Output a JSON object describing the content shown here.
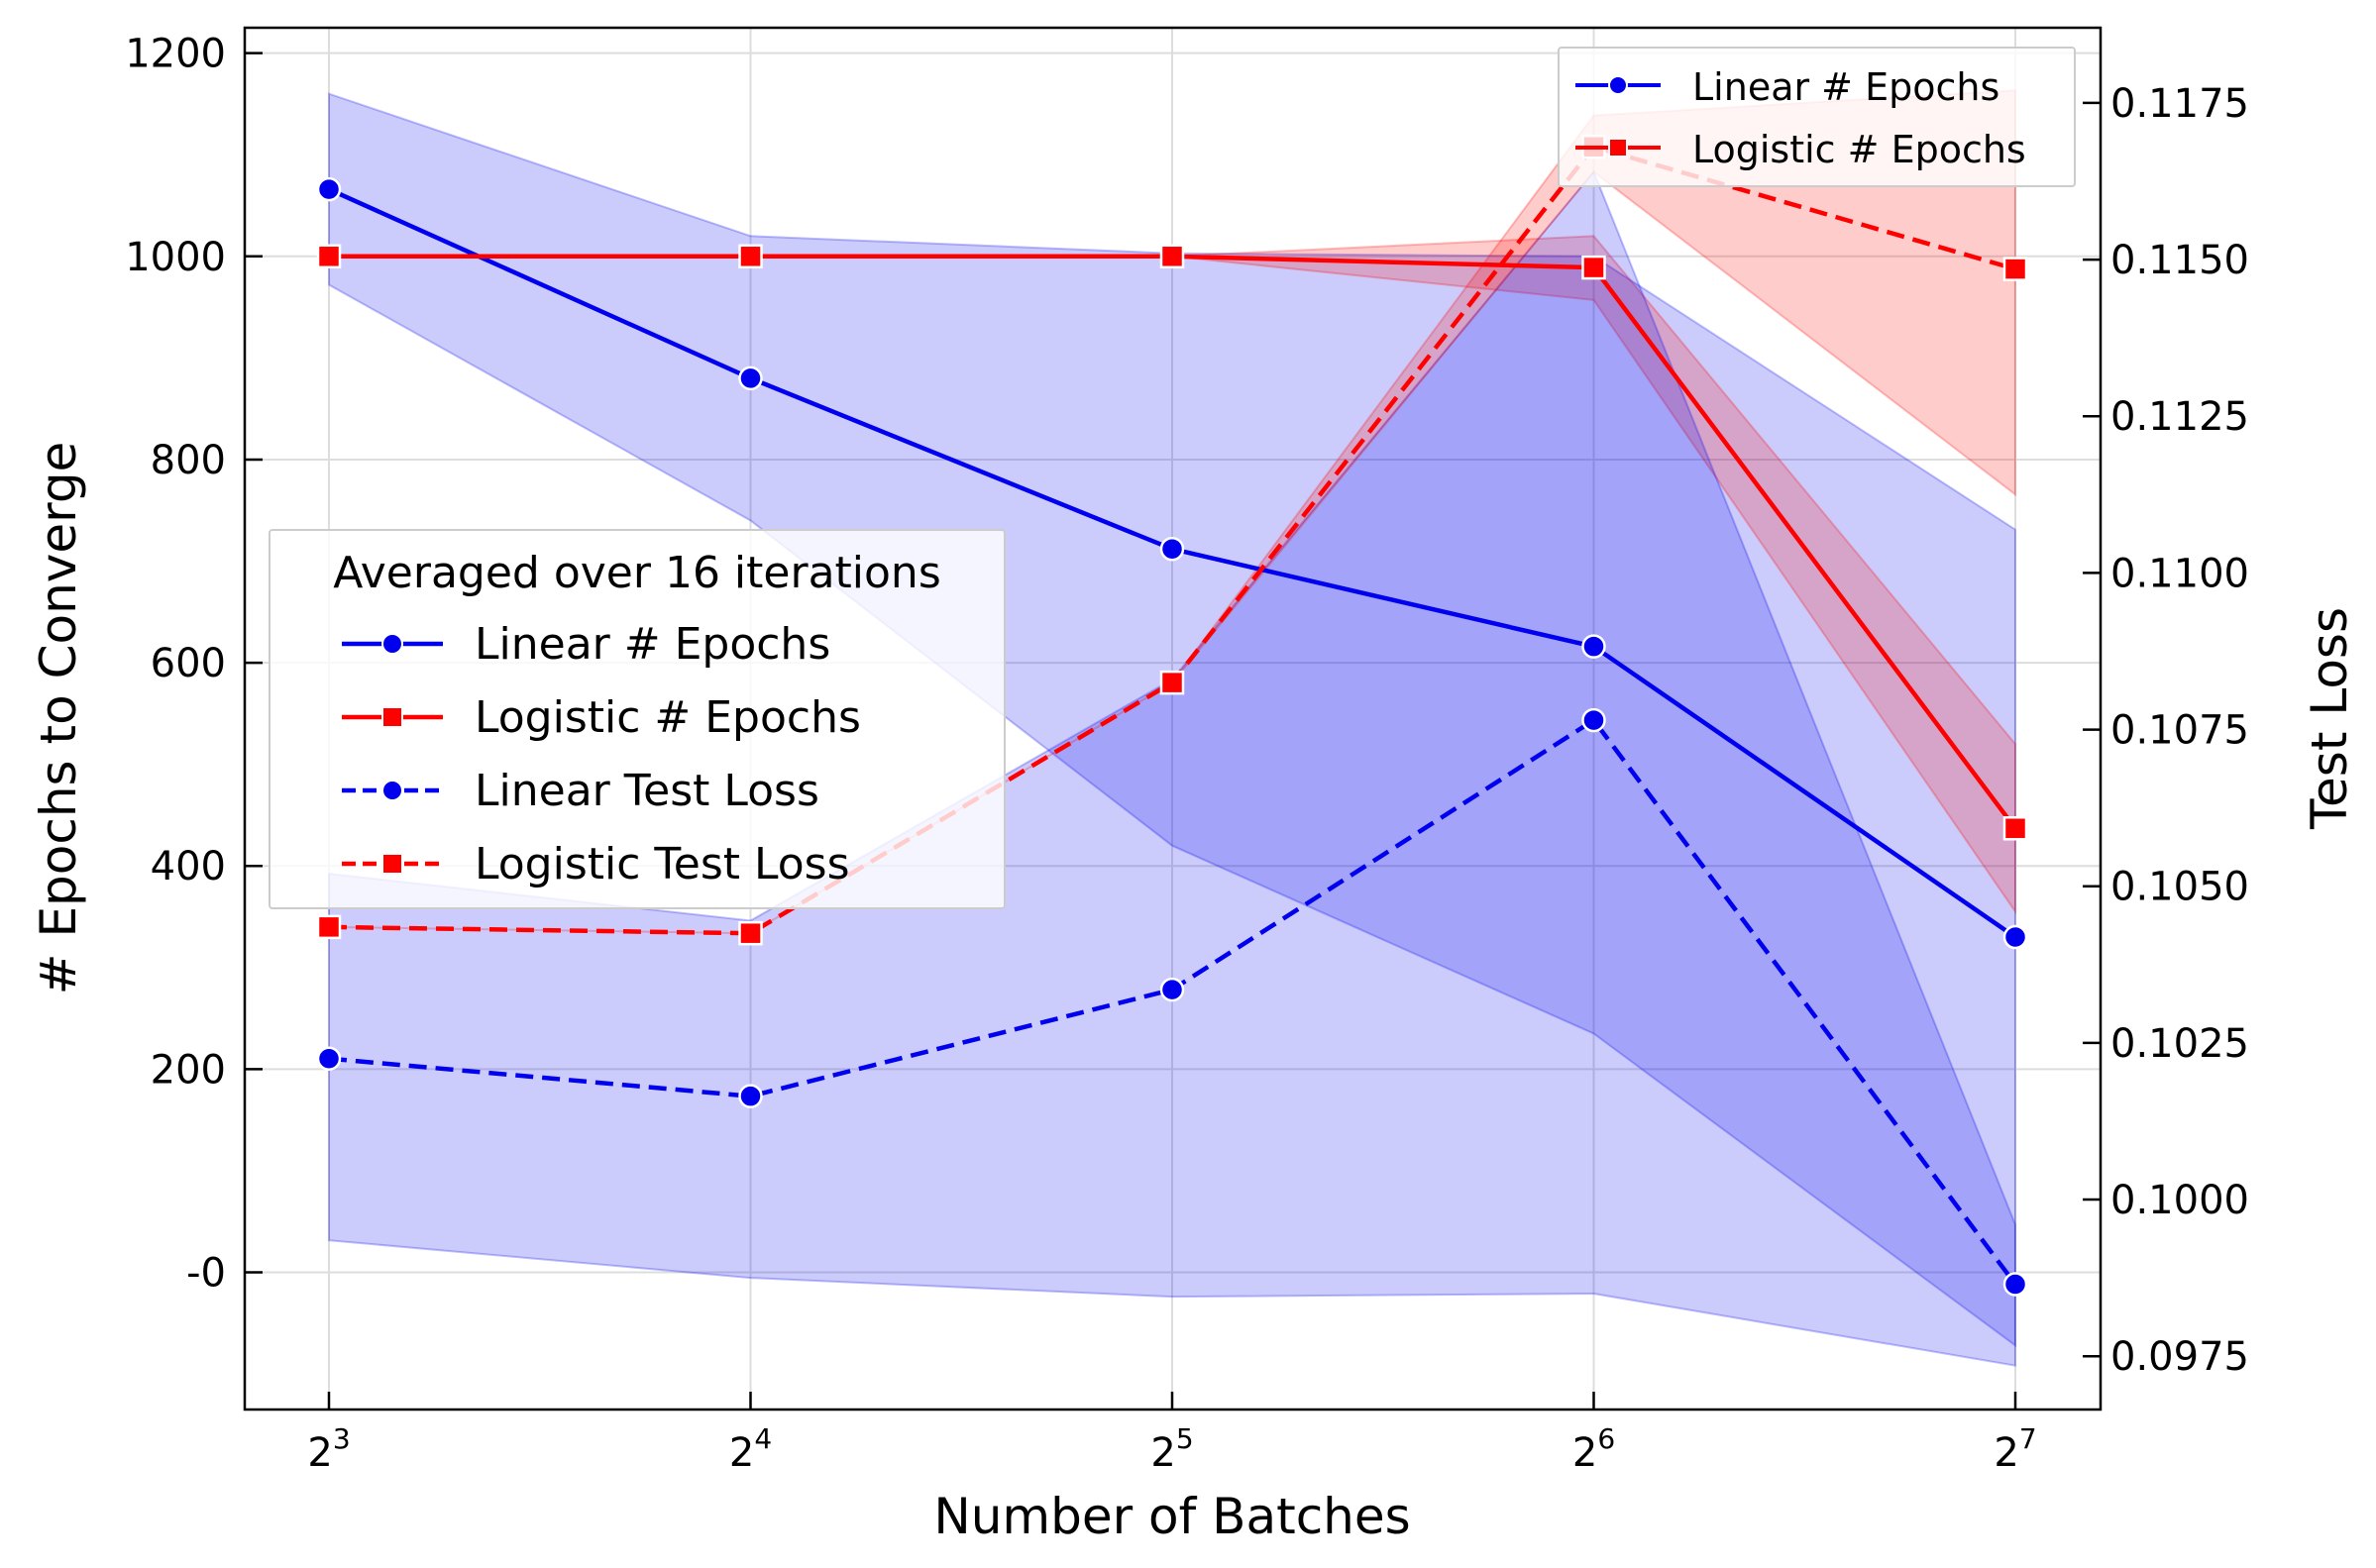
{
  "chart_data": {
    "type": "line",
    "xlabel": "Number of Batches",
    "ylabel_left": "# Epochs to Converge",
    "ylabel_right": "Test Loss",
    "x_scale": "log2",
    "x": [
      8,
      16,
      32,
      64,
      128
    ],
    "x_ticks": [
      {
        "base": "2",
        "exp": "3"
      },
      {
        "base": "2",
        "exp": "4"
      },
      {
        "base": "2",
        "exp": "5"
      },
      {
        "base": "2",
        "exp": "6"
      },
      {
        "base": "2",
        "exp": "7"
      }
    ],
    "ylim_left": [
      -135,
      1225
    ],
    "yticks_left": [
      "-0",
      "200",
      "400",
      "600",
      "800",
      "1000",
      "1200"
    ],
    "ylim_right": [
      0.09665,
      0.1187
    ],
    "yticks_right": [
      "0.0975",
      "0.1000",
      "0.1025",
      "0.1050",
      "0.1075",
      "0.1100",
      "0.1125",
      "0.1150",
      "0.1175"
    ],
    "grid": true,
    "series": [
      {
        "name": "Linear # Epochs",
        "axis": "left",
        "style": "solid",
        "marker": "circle",
        "color": "#0000ee",
        "values": [
          1066,
          880,
          712,
          616,
          330
        ],
        "ci_low": [
          972,
          740,
          420,
          235,
          -72
        ],
        "ci_high": [
          1160,
          1020,
          1003,
          1000,
          731
        ]
      },
      {
        "name": "Logistic # Epochs",
        "axis": "left",
        "style": "solid",
        "marker": "square",
        "color": "#ff0000",
        "values": [
          1000,
          1000,
          1000,
          989,
          437
        ],
        "ci_low": [
          1000,
          1000,
          1000,
          957,
          355
        ],
        "ci_high": [
          1000,
          1000,
          1000,
          1020,
          520
        ]
      },
      {
        "name": "Linear Test Loss",
        "axis": "right",
        "style": "dashed",
        "marker": "circle",
        "color": "#0000ee",
        "values": [
          0.10225,
          0.10165,
          0.10335,
          0.10765,
          0.09865
        ],
        "ci_low": [
          0.09935,
          0.09875,
          0.09845,
          0.0985,
          0.09735
        ],
        "ci_high": [
          0.1052,
          0.10445,
          0.1083,
          0.1164,
          0.0996
        ]
      },
      {
        "name": "Logistic Test Loss",
        "axis": "right",
        "style": "dashed",
        "marker": "square",
        "color": "#ff0000",
        "values": [
          0.10435,
          0.10425,
          0.10825,
          0.1168,
          0.11485
        ],
        "ci_low": [
          0.10435,
          0.10425,
          0.10825,
          0.1164,
          0.11125
        ],
        "ci_high": [
          0.10435,
          0.10425,
          0.10825,
          0.1173,
          0.1177
        ]
      }
    ],
    "legend_main": {
      "title": "Averaged over 16 iterations",
      "placement": "center-left",
      "entries": [
        "Linear # Epochs",
        "Logistic # Epochs",
        "Linear Test Loss",
        "Logistic Test Loss"
      ]
    },
    "legend_secondary": {
      "placement": "top-right",
      "entries": [
        "Linear # Epochs",
        "Logistic # Epochs"
      ]
    }
  }
}
